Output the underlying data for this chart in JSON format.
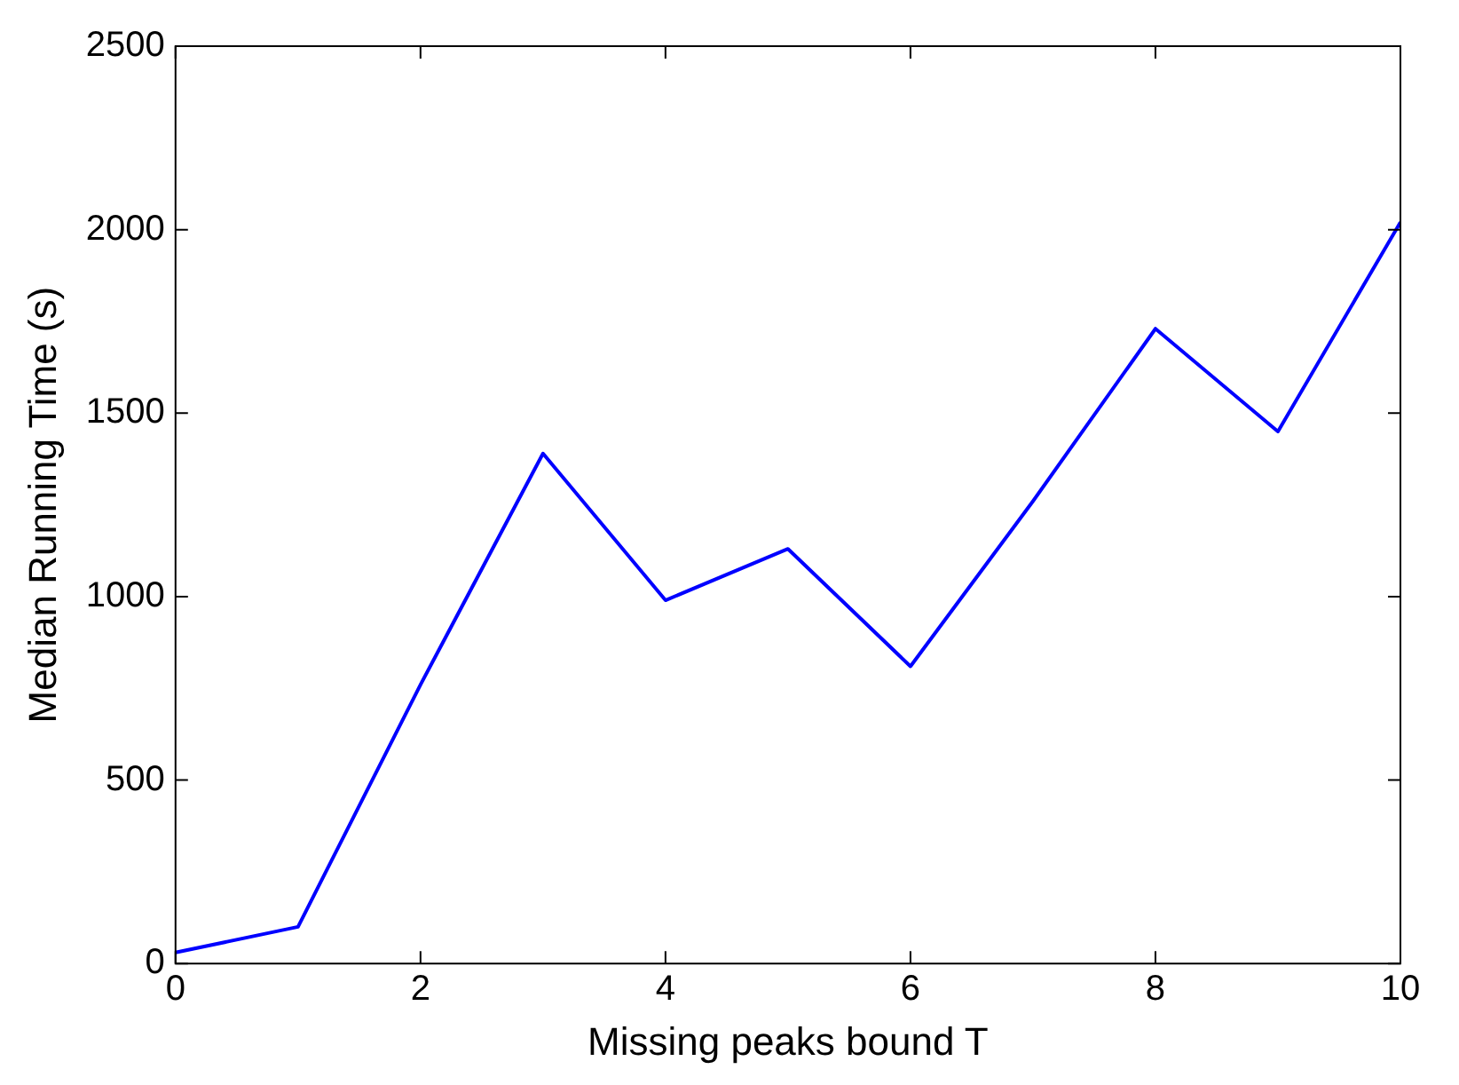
{
  "chart_data": {
    "type": "line",
    "xlabel": "Missing peaks bound T",
    "ylabel": "Median Running Time (s)",
    "x": [
      0,
      1,
      2,
      3,
      4,
      5,
      6,
      7,
      8,
      9,
      10
    ],
    "series": [
      {
        "color": "#0000ff",
        "values": [
          30,
          100,
          760,
          1390,
          990,
          1130,
          810,
          1260,
          1730,
          1450,
          2020
        ]
      }
    ],
    "xlim": [
      0,
      10
    ],
    "xticks": [
      0,
      2,
      4,
      6,
      8,
      10
    ],
    "ylim": [
      0,
      2500
    ],
    "yticks": [
      0,
      500,
      1000,
      1500,
      2000,
      2500
    ],
    "legend": false,
    "marker": "none",
    "line_style": "solid"
  }
}
